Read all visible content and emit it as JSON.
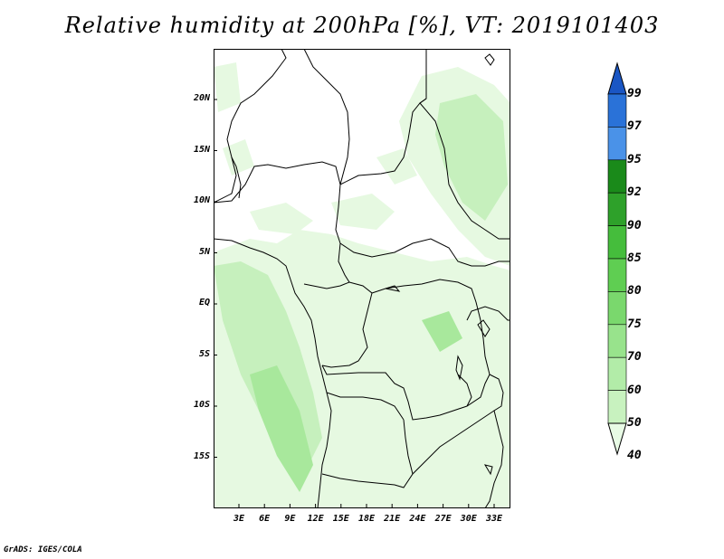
{
  "title": "Relative humidity at 200hPa [%], VT: 2019101403",
  "credit": "GrADS: IGES/COLA",
  "lat_labels": [
    "20N",
    "15N",
    "10N",
    "5N",
    "EQ",
    "5S",
    "10S",
    "15S"
  ],
  "lon_labels": [
    "3E",
    "6E",
    "9E",
    "12E",
    "15E",
    "18E",
    "21E",
    "24E",
    "27E",
    "30E",
    "33E"
  ],
  "colorbar": {
    "labels": [
      "40",
      "50",
      "60",
      "70",
      "75",
      "80",
      "85",
      "90",
      "92",
      "95",
      "97",
      "99"
    ],
    "colors": [
      "#e8fbe5",
      "#c8f2bf",
      "#b2eca8",
      "#98e38c",
      "#7ad86d",
      "#5fce52",
      "#45bd3c",
      "#2ea12a",
      "#1a8a1a",
      "#4a92e8",
      "#2a72d8",
      "#1a56c4"
    ]
  },
  "fill_colors": {
    "light": "#e6f9e1",
    "mid": "#c6f0bd",
    "dark": "#a8e89c"
  }
}
